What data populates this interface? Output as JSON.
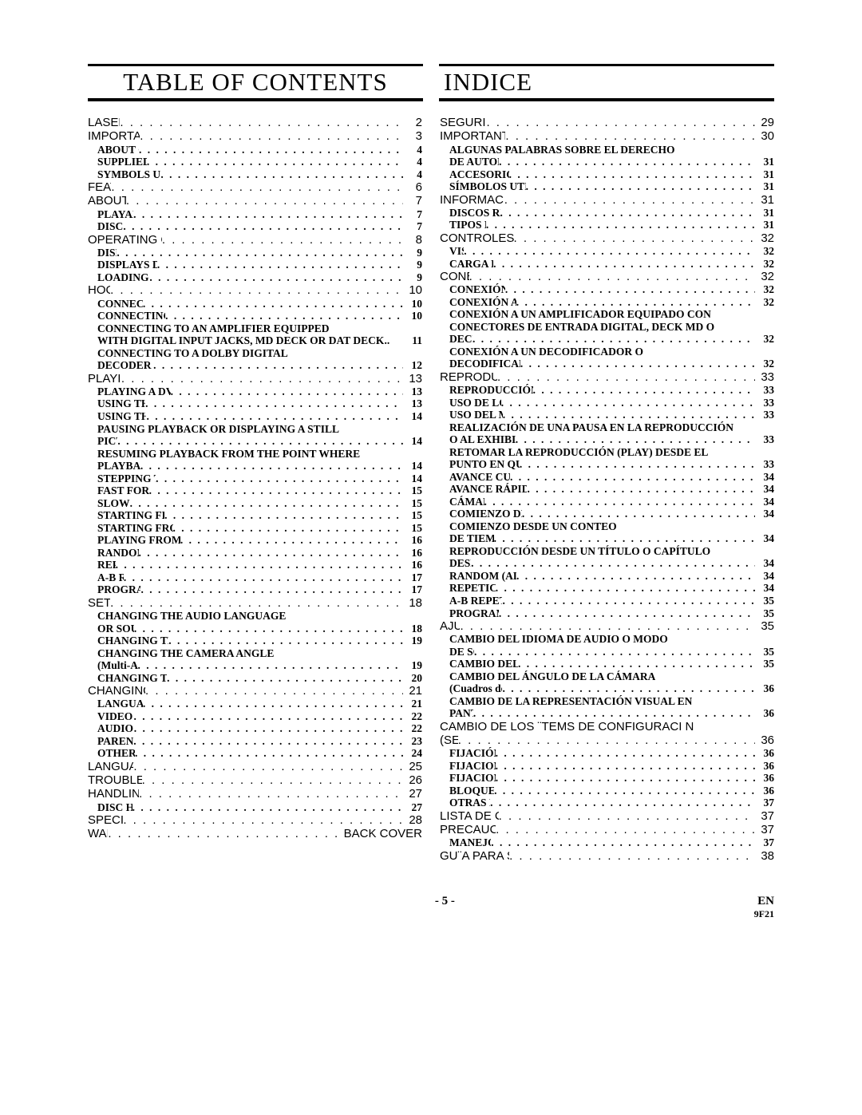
{
  "headers": {
    "left": "TABLE OF CONTENTS",
    "right": "INDICE"
  },
  "footer": {
    "page": "- 5 -",
    "lang": "EN",
    "code": "9F21"
  },
  "dots": ". . . . . . . . . . . . . . . . . . . . . . . . . . . . . . . . . . . . . . . . . . . . . . . . . . . . . . . . . . . . . . . . . . . . . . . . . . . . . . . .",
  "left": [
    {
      "t": "LASER SAFETY",
      "p": "2",
      "l": 0
    },
    {
      "t": "IMPORTANT SAFEGUARDS",
      "p": "3",
      "l": 0
    },
    {
      "t": "ABOUT COPYRIGHT",
      "p": "4",
      "l": 1
    },
    {
      "t": "SUPPLIED ACCESSORIES",
      "p": "4",
      "l": 1
    },
    {
      "t": "SYMBOLS USED IN THIS MANUAL",
      "p": "4",
      "l": 1
    },
    {
      "t": "FEATURES",
      "p": "6",
      "l": 0
    },
    {
      "t": "ABOUT THE DISCS",
      "p": "7",
      "l": 0
    },
    {
      "t": "PLAYABLE DISCS",
      "p": "7",
      "l": 1
    },
    {
      "t": "DISC TYPES",
      "p": "7",
      "l": 1
    },
    {
      "t": "OPERATING CONTROLS AND FUNCTIONS",
      "p": "8",
      "l": 0
    },
    {
      "t": "DISPLAY",
      "p": "9",
      "l": 1
    },
    {
      "t": "DISPLAYS DURING OPERATION",
      "p": "9",
      "l": 1
    },
    {
      "t": "LOADING THE BATTERIES",
      "p": "9",
      "l": 1
    },
    {
      "t": "HOOKUPS",
      "p": "10",
      "l": 0
    },
    {
      "t": "CONNECTING TO A TV",
      "p": "10",
      "l": 1
    },
    {
      "t": "CONNECTING TO A STEREO SYSTEM",
      "p": "10",
      "l": 1
    },
    {
      "t": "CONNECTING TO AN AMPLIFIER EQUIPPED WITH DIGITAL INPUT JACKS, MD DECK OR DAT DECK",
      "p": "11",
      "l": 1,
      "wrap": true,
      "last": true
    },
    {
      "t": "CONNECTING TO A DOLBY DIGITAL DECODER OR DTS DECODER",
      "p": "12",
      "l": 1,
      "wrap": true
    },
    {
      "t": "PLAYING A DISC",
      "p": "13",
      "l": 0
    },
    {
      "t": "PLAYING A DVD VIDEO OR AN AUDIO CD",
      "p": "13",
      "l": 1
    },
    {
      "t": "USING THE DVD MENUS",
      "p": "13",
      "l": 1
    },
    {
      "t": "USING THE TITLE MENU",
      "p": "14",
      "l": 1
    },
    {
      "t": "PAUSING PLAYBACK OR DISPLAYING A STILL PICTURE",
      "p": "14",
      "l": 1,
      "wrap": true
    },
    {
      "t": "RESUMING PLAYBACK FROM THE POINT WHERE PLAYBACK STOPPED",
      "p": "14",
      "l": 1,
      "wrap": true
    },
    {
      "t": "STEPPING THROUGH FRAMES",
      "p": "14",
      "l": 1
    },
    {
      "t": "FAST FORWARD/REVERSE",
      "p": "15",
      "l": 1
    },
    {
      "t": "SLOW MOTION",
      "p": "15",
      "l": 1
    },
    {
      "t": "STARTING FROM A DESIRED TRACK",
      "p": "15",
      "l": 1
    },
    {
      "t": "STARTING FROM A DESIRED TIME COUNT",
      "p": "15",
      "l": 1
    },
    {
      "t": "PLAYING FROM A DESIRED TITLE OR CHAPTER",
      "p": "16",
      "l": 1
    },
    {
      "t": "RANDOM (Audio CD)",
      "p": "16",
      "l": 1
    },
    {
      "t": "REPEAT",
      "p": "16",
      "l": 1
    },
    {
      "t": "A-B REPEAT",
      "p": "17",
      "l": 1
    },
    {
      "t": "PROGRAM (Audio CD)",
      "p": "17",
      "l": 1
    },
    {
      "t": "SETTINGS",
      "p": "18",
      "l": 0
    },
    {
      "t": "CHANGING THE AUDIO LANGUAGE OR SOUND MODE",
      "p": "18",
      "l": 1,
      "wrap": true
    },
    {
      "t": "CHANGING THE SUBTITLE LANGUAGE",
      "p": "19",
      "l": 1
    },
    {
      "t": "CHANGING THE CAMERA ANGLE (Multi-Angle Pictures)",
      "p": "19",
      "l": 1,
      "wrap": true
    },
    {
      "t": "CHANGING THE ON-SCREEN DISPLAY",
      "p": "20",
      "l": 1
    },
    {
      "t": "CHANGING THE SETUP ITEMS",
      "p": "21",
      "l": 0
    },
    {
      "t": "LANGUAGE SETTINGS",
      "p": "21",
      "l": 1
    },
    {
      "t": "VIDEO SETTINGS",
      "p": "22",
      "l": 1
    },
    {
      "t": "AUDIO SETTINGS",
      "p": "22",
      "l": 1
    },
    {
      "t": "PARENTAL LOCK",
      "p": "23",
      "l": 1
    },
    {
      "t": "OTHER SETTINGS",
      "p": "24",
      "l": 1
    },
    {
      "t": "LANGUAGE CODE LIST",
      "p": "25",
      "l": 0
    },
    {
      "t": "TROUBLESHOOTING GUIDE",
      "p": "26",
      "l": 0
    },
    {
      "t": "HANDLING PRECAUTIONS",
      "p": "27",
      "l": 0
    },
    {
      "t": "DISC HANDLING",
      "p": "27",
      "l": 1
    },
    {
      "t": "SPECIFICATIONS",
      "p": "28",
      "l": 0
    },
    {
      "t": "WARRANTY",
      "p": "BACK COVER",
      "l": 0
    }
  ],
  "right": [
    {
      "t": "SEGURIDAD DEL L`SER",
      "p": "29",
      "l": 0
    },
    {
      "t": "IMPORTANTE PARA SU SEGURIDAD",
      "p": "30",
      "l": 0
    },
    {
      "t": "ALGUNAS PALABRAS SOBRE EL DERECHO DE AUTOR (COPYRIGHT)",
      "p": "31",
      "l": 1,
      "wrap": true
    },
    {
      "t": "ACCESORIOS SUMINISTRADOS",
      "p": "31",
      "l": 1
    },
    {
      "t": "SÍMBOLOS UTILIZADOS EN ESTE MANUAL",
      "p": "31",
      "l": 1
    },
    {
      "t": "INFORMACI N SOBRE LOS DISCOS",
      "p": "31",
      "l": 0
    },
    {
      "t": "DISCOS REPRODUCIBLES",
      "p": "31",
      "l": 1
    },
    {
      "t": "TIPOS DE DISCOS",
      "p": "31",
      "l": 1
    },
    {
      "t": "CONTROLES Y FUNCIONES OPERATIVOS",
      "p": "32",
      "l": 0
    },
    {
      "t": "VISOR",
      "p": "32",
      "l": 1
    },
    {
      "t": "CARGA DE LAS PILAS",
      "p": "32",
      "l": 1
    },
    {
      "t": "CONEXIONES",
      "p": "32",
      "l": 0
    },
    {
      "t": "CONEXIÓN A UN TELEVISOR",
      "p": "32",
      "l": 1
    },
    {
      "t": "CONEXIÓN A UN SISTEMA ESTÉREO",
      "p": "32",
      "l": 1
    },
    {
      "t": "CONEXIÓN A UN AMPLIFICADOR EQUIPADO CON CONECTORES DE ENTRADA DIGITAL, DECK MD O DECK DAT",
      "p": "32",
      "l": 1,
      "wrap": true
    },
    {
      "t": "CONEXIÓN A UN DECODIFICADOR O DECODIFICADOR DTS DOLBY DIGITAL",
      "p": "32",
      "l": 1,
      "wrap": true
    },
    {
      "t": "REPRODUCCI N DE UN DISCO",
      "p": "33",
      "l": 0
    },
    {
      "t": "REPRODUCCIÓN DE UN DVD VIDEO O CD AUDIO",
      "p": "33",
      "l": 1
    },
    {
      "t": "USO DE LOS MENÚES DVD",
      "p": "33",
      "l": 1
    },
    {
      "t": "USO DEL MENÚ DE TÍTULO",
      "p": "33",
      "l": 1
    },
    {
      "t": "REALIZACIÓN DE UNA PAUSA EN LA REPRODUCCIÓN O AL EXHIBIR UN CUADRO QUIETO",
      "p": "33",
      "l": 1,
      "wrap": true,
      "tight": true
    },
    {
      "t": "RETOMAR LA REPRODUCCIÓN (PLAY) DESDE EL PUNTO EN QUE LA MISMA SE DETUVO",
      "p": "33",
      "l": 1,
      "wrap": true
    },
    {
      "t": "AVANCE CUADRO POR CUADRO",
      "p": "34",
      "l": 1
    },
    {
      "t": "AVANCE RÁPIDO (FWD)/REBOBINADO (REV)",
      "p": "34",
      "l": 1
    },
    {
      "t": "CÁMARA LENTA",
      "p": "34",
      "l": 1
    },
    {
      "t": "COMIENZO DESDE UNA PISTA DESEADA",
      "p": "34",
      "l": 1
    },
    {
      "t": "COMIENZO DESDE UN CONTEO DE TIEMPO DESEADO",
      "p": "34",
      "l": 1,
      "wrap": true
    },
    {
      "t": "REPRODUCCIÓN DESDE UN TÍTULO O CAPÍTULO DESEADO",
      "p": "34",
      "l": 1,
      "wrap": true
    },
    {
      "t": "RANDOM (ALEATORIO) (CD de audio)",
      "p": "34",
      "l": 1
    },
    {
      "t": "REPETICIÓN (REPEAT)",
      "p": "34",
      "l": 1
    },
    {
      "t": "A-B REPETIR (A-B REPEAT)",
      "p": "35",
      "l": 1
    },
    {
      "t": "PROGRAMA (CD de audio)",
      "p": "35",
      "l": 1
    },
    {
      "t": "AJUSTES",
      "p": "35",
      "l": 0
    },
    {
      "t": "CAMBIO DEL IDIOMA DE AUDIO O MODO DE SONIDO",
      "p": "35",
      "l": 1,
      "wrap": true
    },
    {
      "t": "CAMBIO DEL IDIOMA DE SUBTÍTULO",
      "p": "35",
      "l": 1
    },
    {
      "t": "CAMBIO DEL ÁNGULO DE LA CÁMARA (Cuadros de múltiples ángulos)",
      "p": "36",
      "l": 1,
      "wrap": true
    },
    {
      "t": "CAMBIO DE LA REPRESENTACIÓN VISUAL EN PANTALLA",
      "p": "36",
      "l": 1,
      "wrap": true
    },
    {
      "t": "CAMBIO DE LOS ¨TEMS DE CONFIGURACI N (SETUP)",
      "p": "36",
      "l": 0,
      "wrap": true
    },
    {
      "t": "FIJACIÓN DE IDIOMAS",
      "p": "36",
      "l": 1
    },
    {
      "t": "FIJACIONES DE VÍDEO",
      "p": "36",
      "l": 1
    },
    {
      "t": "FIJACIONES DE AUDIO",
      "p": "36",
      "l": 1
    },
    {
      "t": "BLOQUEO DE PADRES",
      "p": "36",
      "l": 1
    },
    {
      "t": "OTRAS FIJACIONES",
      "p": "37",
      "l": 1
    },
    {
      "t": "LISTA DE C DIGOS DE IDIOMAS",
      "p": "37",
      "l": 0
    },
    {
      "t": "PRECAUCIONES DE MANEJO",
      "p": "37",
      "l": 0
    },
    {
      "t": "MANEJO DEL DISCO",
      "p": "37",
      "l": 1
    },
    {
      "t": "GU¨A PARA SOLUCI N DE PROBLEMAS",
      "p": "38",
      "l": 0
    }
  ]
}
